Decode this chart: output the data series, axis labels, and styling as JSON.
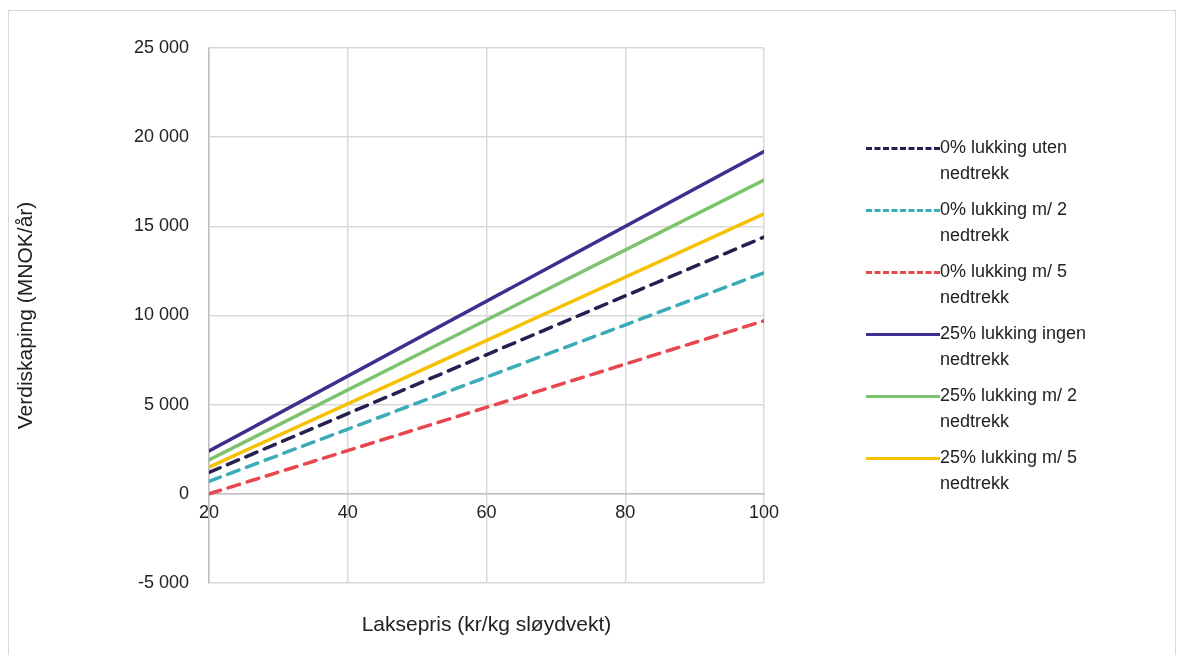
{
  "chart_data": {
    "type": "line",
    "xlabel": "Laksepris (kr/kg sløydvekt)",
    "ylabel": "Verdiskaping (MNOK/år)",
    "x": [
      20,
      100
    ],
    "xlim": [
      20,
      100
    ],
    "xticks": [
      20,
      40,
      60,
      80,
      100
    ],
    "ylim": [
      -5000,
      25000
    ],
    "yticks": [
      {
        "value": -5000,
        "label": "-5 000"
      },
      {
        "value": 0,
        "label": "0"
      },
      {
        "value": 5000,
        "label": "5 000"
      },
      {
        "value": 10000,
        "label": "10 000"
      },
      {
        "value": 15000,
        "label": "15 000"
      },
      {
        "value": 20000,
        "label": "20 000"
      },
      {
        "value": 25000,
        "label": "25 000"
      }
    ],
    "grid": true,
    "legend": "right",
    "marker": "none",
    "series": [
      {
        "name": "0% lukking uten nedtrekk",
        "color": "#262050",
        "line_style": "dashed",
        "values": [
          1200,
          14400
        ]
      },
      {
        "name": "0% lukking m/ 2 nedtrekk",
        "color": "#3aacb8",
        "line_style": "dashed",
        "values": [
          700,
          12400
        ]
      },
      {
        "name": "0% lukking m/ 5 nedtrekk",
        "color": "#e8474f",
        "line_style": "dashed",
        "values": [
          0,
          9700
        ]
      },
      {
        "name": "25% lukking ingen nedtrekk",
        "color": "#3b2f8f",
        "line_style": "solid",
        "values": [
          2400,
          19200
        ]
      },
      {
        "name": "25% lukking m/ 2 nedtrekk",
        "color": "#7dc36f",
        "line_style": "solid",
        "values": [
          1900,
          17600
        ]
      },
      {
        "name": "25% lukking m/ 5 nedtrekk",
        "color": "#f5c100",
        "line_style": "solid",
        "values": [
          1500,
          15700
        ]
      }
    ]
  }
}
